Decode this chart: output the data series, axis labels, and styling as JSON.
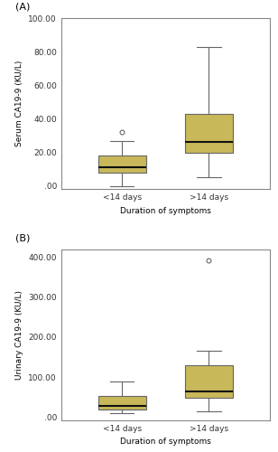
{
  "panel_A": {
    "label": "(A)",
    "ylabel": "Serum CA19-9 (KU/L)",
    "xlabel": "Duration of symptoms",
    "ylim": [
      -2,
      100
    ],
    "yticks": [
      0,
      20,
      40,
      60,
      80,
      100
    ],
    "ytick_labels": [
      ".00",
      "20.00",
      "40.00",
      "60.00",
      "80.00",
      "100.00"
    ],
    "categories": [
      "<14 days",
      ">14 days"
    ],
    "boxes": [
      {
        "q1": 8,
        "median": 11,
        "q3": 18,
        "whislo": 0,
        "whishi": 27,
        "fliers": [
          32
        ]
      },
      {
        "q1": 20,
        "median": 26,
        "q3": 43,
        "whislo": 5,
        "whishi": 83,
        "fliers": []
      }
    ]
  },
  "panel_B": {
    "label": "(B)",
    "ylabel": "Urinary CA19-9 (KU/L)",
    "xlabel": "Duration of symptoms",
    "ylim": [
      -8,
      420
    ],
    "yticks": [
      0,
      100,
      200,
      300,
      400
    ],
    "ytick_labels": [
      ".00",
      "100.00",
      "200.00",
      "300.00",
      "400.00"
    ],
    "categories": [
      "<14 days",
      ">14 days"
    ],
    "boxes": [
      {
        "q1": 20,
        "median": 28,
        "q3": 52,
        "whislo": 10,
        "whishi": 90,
        "fliers": []
      },
      {
        "q1": 48,
        "median": 65,
        "q3": 130,
        "whislo": 15,
        "whishi": 165,
        "fliers": [
          393
        ]
      }
    ]
  },
  "box_color": "#C8B85A",
  "box_edge_color": "#666666",
  "median_color": "#111111",
  "whisker_color": "#666666",
  "flier_color": "#666666",
  "bg_color": "#ffffff",
  "font_size": 6.5,
  "label_font_size": 8
}
